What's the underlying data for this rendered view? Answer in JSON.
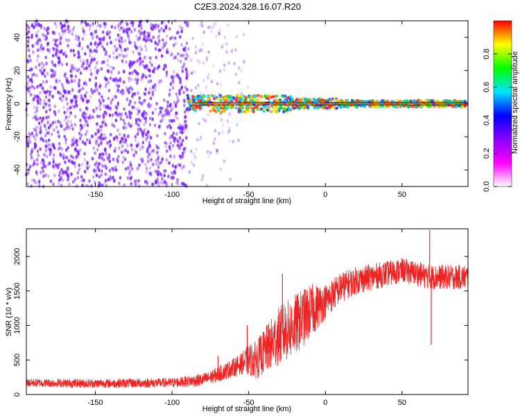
{
  "title": "C2E3.2024.328.16.07.R20",
  "colors": {
    "background": "#ffffff",
    "snr_line": "#ee2222",
    "noise_dot": "#7a1fff",
    "ridge_line": "#000000"
  },
  "chart_data": [
    {
      "type": "heatmap",
      "xlabel": "Height of straight line (km)",
      "ylabel": "Frequency (Hz)",
      "xlim": [
        -195,
        93
      ],
      "ylim": [
        -50,
        50
      ],
      "x_ticks": [
        -150,
        -100,
        -50,
        0,
        50
      ],
      "y_ticks": [
        -40,
        -20,
        0,
        20,
        40
      ],
      "colorbar": {
        "label": "Normalized spectral amplitude",
        "range": [
          0.0,
          1.0
        ],
        "ticks": [
          "0.0",
          "0.2",
          "0.4",
          "0.6",
          "0.8"
        ],
        "colormap": [
          "#ffffff",
          "#ff00ff",
          "#8800ff",
          "#0000ff",
          "#00e5ff",
          "#00ff00",
          "#ffff00",
          "#ff0000"
        ]
      },
      "ridge_frequency": 0,
      "noise_region_km": [
        -195,
        -50
      ],
      "signal_region_km": [
        -90,
        93
      ],
      "grid": false
    },
    {
      "type": "line",
      "xlabel": "Height of straight line (km)",
      "ylabel": "SNR (10 * v/v)",
      "xlim": [
        -195,
        93
      ],
      "ylim": [
        0,
        2400
      ],
      "x_ticks": [
        -150,
        -100,
        -50,
        0,
        50
      ],
      "y_ticks": [
        0,
        500,
        1000,
        1500,
        2000
      ],
      "envelope": {
        "x": [
          -195,
          -150,
          -100,
          -80,
          -70,
          -60,
          -50,
          -45,
          -40,
          -30,
          -20,
          -10,
          0,
          10,
          20,
          30,
          40,
          50,
          60,
          68,
          80,
          93
        ],
        "y": [
          170,
          160,
          170,
          210,
          290,
          390,
          500,
          500,
          620,
          850,
          1000,
          1200,
          1350,
          1550,
          1650,
          1700,
          1750,
          1800,
          1750,
          1700,
          1700,
          1700
        ]
      },
      "noise_amplitude": {
        "x": [
          -195,
          -100,
          -75,
          -55,
          -50,
          -40,
          -30,
          -20,
          -10,
          0,
          20,
          50,
          93
        ],
        "y": [
          60,
          70,
          100,
          150,
          230,
          330,
          430,
          450,
          400,
          250,
          200,
          180,
          180
        ]
      },
      "spikes": [
        {
          "x": -70,
          "y": 560
        },
        {
          "x": -51,
          "y": 1000
        },
        {
          "x": -28,
          "y": 1750
        },
        {
          "x": -19,
          "y": 1350
        },
        {
          "x": -17,
          "y": 1180
        },
        {
          "x": 68,
          "y": 2380
        },
        {
          "x": 69,
          "y": 720
        }
      ],
      "grid": false
    }
  ]
}
